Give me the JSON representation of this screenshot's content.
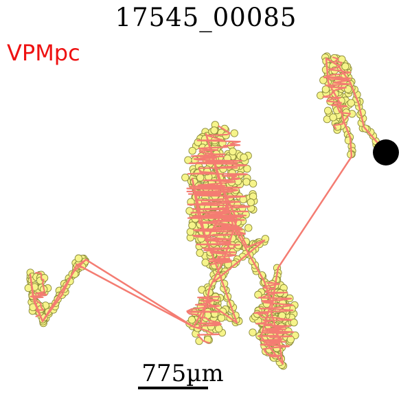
{
  "title": "17545_00085",
  "region": {
    "label": "VPMpc",
    "color": "#ee1111"
  },
  "scalebar": {
    "label": "775µm",
    "color": "#000000"
  },
  "colors": {
    "trace_line": "#f47c72",
    "node_fill": "#f6f48a",
    "node_stroke": "#8a8a3a",
    "soma": "#000000"
  }
}
